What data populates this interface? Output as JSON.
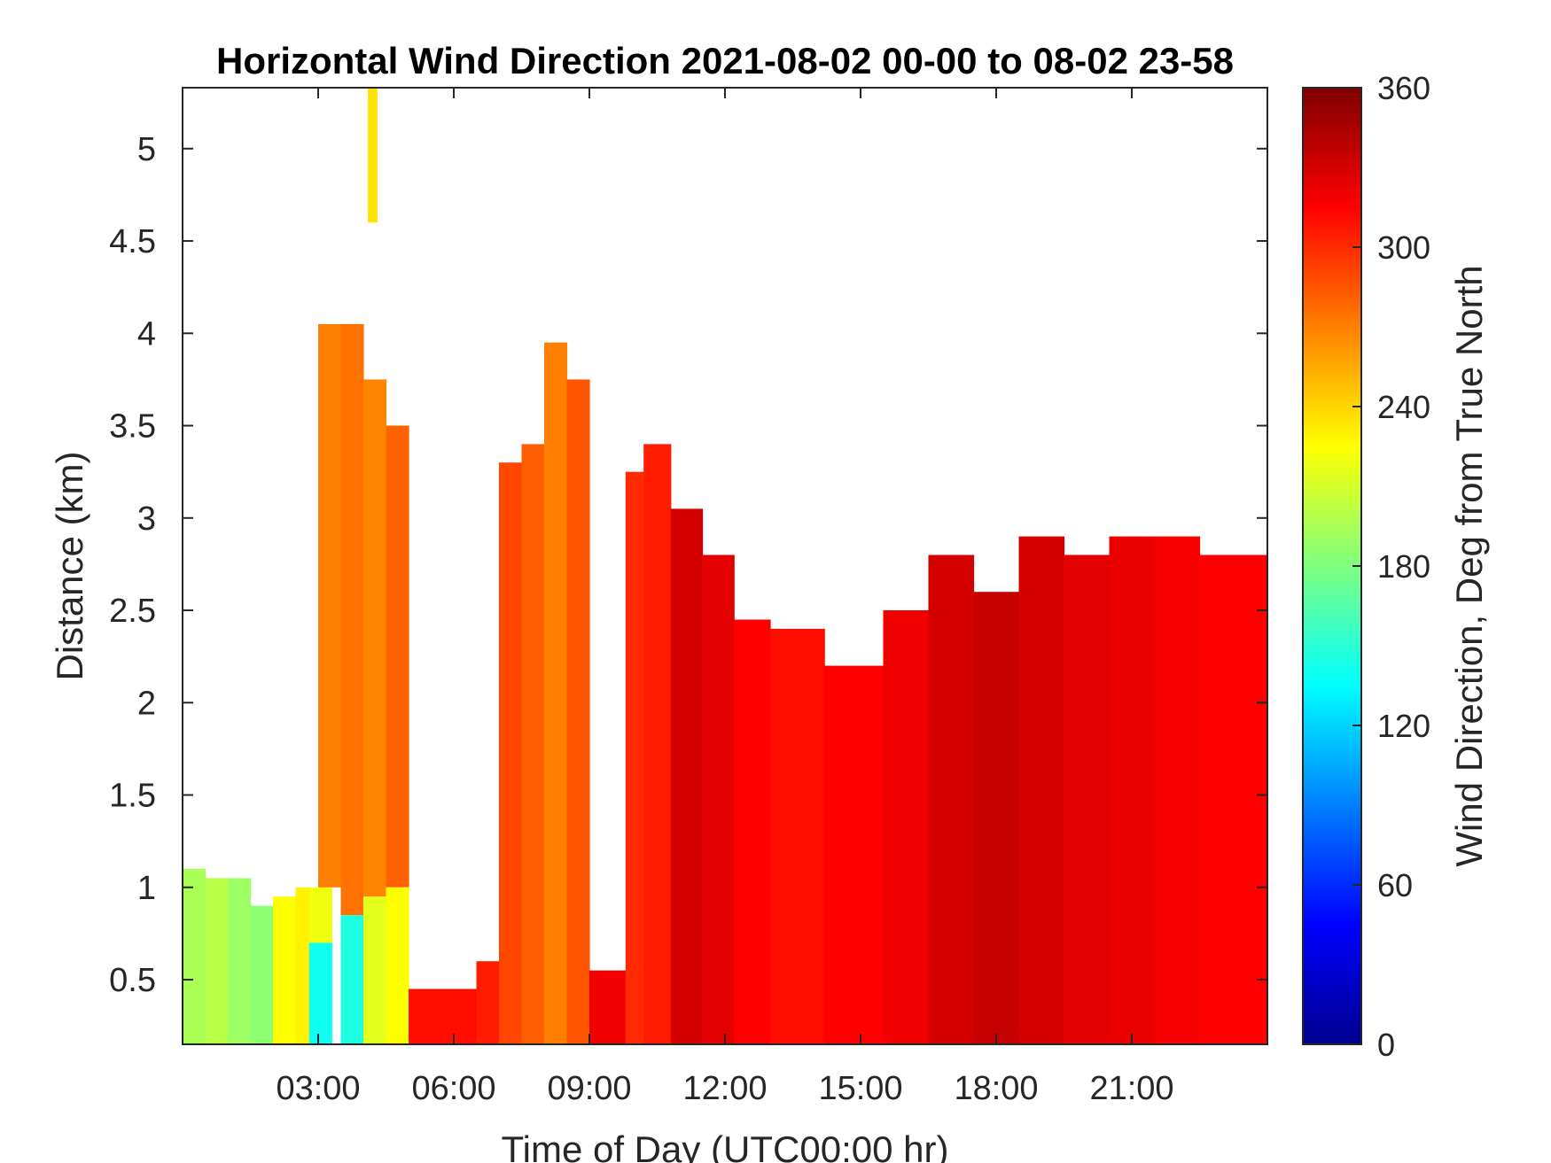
{
  "chart_data": {
    "type": "heatmap",
    "title": "Horizontal Wind Direction 2021-08-02 00-00 to 08-02 23-58",
    "xlabel": "Time of Day (UTC00:00 hr)",
    "ylabel": "Distance (km)",
    "colorbar_label": "Wind Direction, Deg from True North",
    "colormap": "jet",
    "x_unit": "hour",
    "xlim": [
      0,
      24
    ],
    "ylim": [
      0.15,
      5.33
    ],
    "clim": [
      0,
      360
    ],
    "x_ticks": [
      {
        "value": 3,
        "label": "03:00"
      },
      {
        "value": 6,
        "label": "06:00"
      },
      {
        "value": 9,
        "label": "09:00"
      },
      {
        "value": 12,
        "label": "12:00"
      },
      {
        "value": 15,
        "label": "15:00"
      },
      {
        "value": 18,
        "label": "18:00"
      },
      {
        "value": 21,
        "label": "21:00"
      }
    ],
    "y_ticks": [
      {
        "value": 0.5,
        "label": "0.5"
      },
      {
        "value": 1,
        "label": "1"
      },
      {
        "value": 1.5,
        "label": "1.5"
      },
      {
        "value": 2,
        "label": "2"
      },
      {
        "value": 2.5,
        "label": "2.5"
      },
      {
        "value": 3,
        "label": "3"
      },
      {
        "value": 3.5,
        "label": "3.5"
      },
      {
        "value": 4,
        "label": "4"
      },
      {
        "value": 4.5,
        "label": "4.5"
      },
      {
        "value": 5,
        "label": "5"
      }
    ],
    "colorbar_ticks": [
      {
        "value": 0,
        "label": "0"
      },
      {
        "value": 60,
        "label": "60"
      },
      {
        "value": 120,
        "label": "120"
      },
      {
        "value": 180,
        "label": "180"
      },
      {
        "value": 240,
        "label": "240"
      },
      {
        "value": 300,
        "label": "300"
      },
      {
        "value": 360,
        "label": "360"
      }
    ],
    "grid": false,
    "regions": [
      {
        "x": [
          0.0,
          0.5
        ],
        "y": [
          0.15,
          1.1
        ],
        "direction": 195
      },
      {
        "x": [
          0.5,
          1.0
        ],
        "y": [
          0.15,
          1.05
        ],
        "direction": 200
      },
      {
        "x": [
          1.0,
          1.5
        ],
        "y": [
          0.15,
          1.05
        ],
        "direction": 190
      },
      {
        "x": [
          1.5,
          2.0
        ],
        "y": [
          0.15,
          0.9
        ],
        "direction": 185
      },
      {
        "x": [
          2.0,
          2.5
        ],
        "y": [
          0.15,
          0.95
        ],
        "direction": 225
      },
      {
        "x": [
          2.5,
          2.8
        ],
        "y": [
          0.15,
          1.0
        ],
        "direction": 230
      },
      {
        "x": [
          2.8,
          3.3
        ],
        "y": [
          0.15,
          0.7
        ],
        "direction": 140
      },
      {
        "x": [
          2.8,
          3.3
        ],
        "y": [
          0.7,
          1.0
        ],
        "direction": 220
      },
      {
        "x": [
          3.0,
          3.5
        ],
        "y": [
          1.0,
          4.05
        ],
        "direction": 270
      },
      {
        "x": [
          3.5,
          4.0
        ],
        "y": [
          0.15,
          0.85
        ],
        "direction": 145
      },
      {
        "x": [
          3.5,
          4.0
        ],
        "y": [
          0.85,
          4.05
        ],
        "direction": 275
      },
      {
        "x": [
          4.0,
          4.5
        ],
        "y": [
          0.15,
          0.95
        ],
        "direction": 215
      },
      {
        "x": [
          4.0,
          4.5
        ],
        "y": [
          0.95,
          3.75
        ],
        "direction": 268
      },
      {
        "x": [
          4.5,
          5.0
        ],
        "y": [
          0.15,
          1.0
        ],
        "direction": 225
      },
      {
        "x": [
          4.5,
          5.0
        ],
        "y": [
          1.0,
          3.5
        ],
        "direction": 280
      },
      {
        "x": [
          4.1,
          4.3
        ],
        "y": [
          4.6,
          5.33
        ],
        "direction": 235
      },
      {
        "x": [
          5.0,
          6.5
        ],
        "y": [
          0.15,
          0.45
        ],
        "direction": 310
      },
      {
        "x": [
          6.5,
          7.0
        ],
        "y": [
          0.15,
          0.6
        ],
        "direction": 305
      },
      {
        "x": [
          7.0,
          7.5
        ],
        "y": [
          0.15,
          3.3
        ],
        "direction": 290
      },
      {
        "x": [
          7.5,
          8.0
        ],
        "y": [
          0.15,
          3.4
        ],
        "direction": 282
      },
      {
        "x": [
          8.0,
          8.5
        ],
        "y": [
          0.15,
          3.95
        ],
        "direction": 270
      },
      {
        "x": [
          8.5,
          9.0
        ],
        "y": [
          0.15,
          3.75
        ],
        "direction": 285
      },
      {
        "x": [
          9.0,
          9.8
        ],
        "y": [
          0.15,
          0.55
        ],
        "direction": 320
      },
      {
        "x": [
          9.8,
          10.2
        ],
        "y": [
          0.15,
          3.25
        ],
        "direction": 300
      },
      {
        "x": [
          10.2,
          10.8
        ],
        "y": [
          0.15,
          3.4
        ],
        "direction": 305
      },
      {
        "x": [
          10.8,
          11.5
        ],
        "y": [
          0.15,
          3.05
        ],
        "direction": 330
      },
      {
        "x": [
          11.5,
          12.2
        ],
        "y": [
          0.15,
          2.8
        ],
        "direction": 325
      },
      {
        "x": [
          12.2,
          13.0
        ],
        "y": [
          0.15,
          2.45
        ],
        "direction": 315
      },
      {
        "x": [
          13.0,
          14.2
        ],
        "y": [
          0.15,
          2.4
        ],
        "direction": 310
      },
      {
        "x": [
          14.2,
          15.5
        ],
        "y": [
          0.15,
          2.2
        ],
        "direction": 315
      },
      {
        "x": [
          15.5,
          16.5
        ],
        "y": [
          0.15,
          2.5
        ],
        "direction": 320
      },
      {
        "x": [
          16.5,
          17.5
        ],
        "y": [
          0.15,
          2.8
        ],
        "direction": 330
      },
      {
        "x": [
          17.5,
          18.5
        ],
        "y": [
          0.15,
          2.6
        ],
        "direction": 335
      },
      {
        "x": [
          18.5,
          19.5
        ],
        "y": [
          0.15,
          2.9
        ],
        "direction": 330
      },
      {
        "x": [
          19.5,
          20.5
        ],
        "y": [
          0.15,
          2.8
        ],
        "direction": 325
      },
      {
        "x": [
          20.5,
          21.5
        ],
        "y": [
          0.15,
          2.9
        ],
        "direction": 322
      },
      {
        "x": [
          21.5,
          22.5
        ],
        "y": [
          0.15,
          2.9
        ],
        "direction": 318
      },
      {
        "x": [
          22.5,
          24.0
        ],
        "y": [
          0.15,
          2.8
        ],
        "direction": 315
      }
    ]
  }
}
